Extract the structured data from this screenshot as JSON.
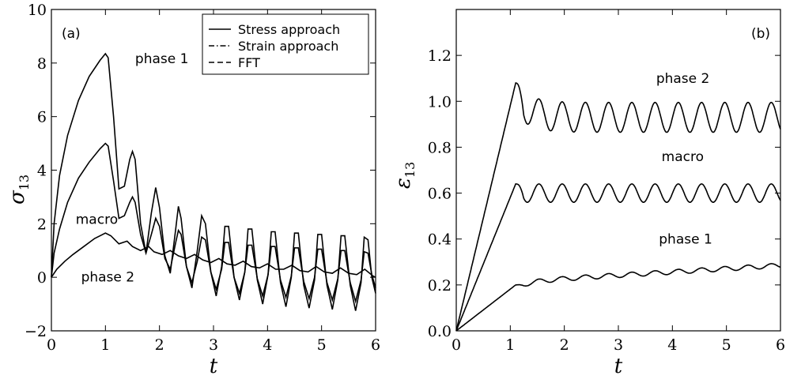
{
  "chart_data": [
    {
      "type": "line",
      "panel_label": "(a)",
      "xlabel": "t",
      "ylabel": {
        "base": "σ",
        "sub": "13"
      },
      "xlim": [
        0,
        6
      ],
      "ylim": [
        -2,
        10
      ],
      "xticks": [
        "0",
        "1",
        "2",
        "3",
        "4",
        "5",
        "6"
      ],
      "yticks": [
        "−2",
        "0",
        "2",
        "4",
        "6",
        "8",
        "10"
      ],
      "grid": false,
      "legend": {
        "placement": "top-right",
        "entries": [
          {
            "label": "Stress approach",
            "style": "solid"
          },
          {
            "label": "Strain approach",
            "style": "dashdot"
          },
          {
            "label": "FFT",
            "style": "dashed"
          }
        ]
      },
      "annotations": [
        {
          "text": "phase 1",
          "x": 1.55,
          "y": 8.0
        },
        {
          "text": "macro",
          "x": 0.45,
          "y": 2.0
        },
        {
          "text": "phase 2",
          "x": 0.55,
          "y": -0.15
        }
      ],
      "series": [
        {
          "name": "phase 1",
          "x": [
            0,
            0.05,
            0.15,
            0.3,
            0.5,
            0.7,
            0.9,
            1.0,
            1.05,
            1.15,
            1.25,
            1.35,
            1.45,
            1.5,
            1.55,
            1.65,
            1.75,
            1.85,
            1.93,
            2.0,
            2.1,
            2.2,
            2.3,
            2.35,
            2.4,
            2.5,
            2.6,
            2.7,
            2.78,
            2.85,
            2.95,
            3.05,
            3.15,
            3.21,
            3.28,
            3.38,
            3.48,
            3.58,
            3.64,
            3.71,
            3.81,
            3.91,
            4.01,
            4.07,
            4.14,
            4.24,
            4.34,
            4.44,
            4.5,
            4.57,
            4.67,
            4.77,
            4.87,
            4.93,
            5.0,
            5.1,
            5.2,
            5.3,
            5.36,
            5.43,
            5.53,
            5.63,
            5.73,
            5.79,
            5.86,
            5.93,
            6.0
          ],
          "y": [
            0,
            2.0,
            3.8,
            5.3,
            6.6,
            7.5,
            8.1,
            8.35,
            8.2,
            6.0,
            3.3,
            3.4,
            4.4,
            4.7,
            4.4,
            2.0,
            0.9,
            2.4,
            3.35,
            2.6,
            0.8,
            0.15,
            1.8,
            2.65,
            2.2,
            0.4,
            -0.4,
            1.0,
            2.3,
            2.0,
            0.2,
            -0.7,
            0.4,
            1.9,
            1.9,
            0.0,
            -0.85,
            0.2,
            1.8,
            1.8,
            -0.1,
            -1.0,
            0.1,
            1.7,
            1.7,
            -0.2,
            -1.1,
            0.0,
            1.65,
            1.65,
            -0.3,
            -1.15,
            -0.1,
            1.6,
            1.6,
            -0.3,
            -1.2,
            -0.1,
            1.55,
            1.55,
            -0.3,
            -1.25,
            -0.2,
            1.5,
            1.4,
            0.0,
            -0.6
          ]
        },
        {
          "name": "macro",
          "x": [
            0,
            0.05,
            0.15,
            0.3,
            0.5,
            0.7,
            0.9,
            1.0,
            1.05,
            1.15,
            1.25,
            1.35,
            1.45,
            1.5,
            1.55,
            1.65,
            1.75,
            1.85,
            1.93,
            2.0,
            2.1,
            2.2,
            2.3,
            2.35,
            2.4,
            2.5,
            2.6,
            2.7,
            2.78,
            2.85,
            2.95,
            3.05,
            3.15,
            3.21,
            3.28,
            3.38,
            3.48,
            3.58,
            3.64,
            3.71,
            3.81,
            3.91,
            4.01,
            4.07,
            4.14,
            4.24,
            4.34,
            4.44,
            4.5,
            4.57,
            4.67,
            4.77,
            4.87,
            4.93,
            5.0,
            5.1,
            5.2,
            5.3,
            5.36,
            5.43,
            5.53,
            5.63,
            5.73,
            5.79,
            5.86,
            5.93,
            6.0
          ],
          "y": [
            0,
            0.9,
            1.8,
            2.8,
            3.7,
            4.3,
            4.8,
            5.0,
            4.9,
            3.6,
            2.2,
            2.3,
            2.8,
            3.0,
            2.8,
            1.6,
            0.9,
            1.6,
            2.2,
            1.9,
            0.7,
            0.3,
            1.3,
            1.75,
            1.6,
            0.4,
            -0.2,
            0.6,
            1.5,
            1.4,
            0.2,
            -0.45,
            0.3,
            1.3,
            1.3,
            0.0,
            -0.6,
            0.2,
            1.2,
            1.2,
            -0.05,
            -0.7,
            0.1,
            1.15,
            1.15,
            -0.1,
            -0.75,
            0.05,
            1.1,
            1.1,
            -0.15,
            -0.8,
            0.0,
            1.05,
            1.05,
            -0.2,
            -0.85,
            -0.05,
            1.0,
            1.0,
            -0.2,
            -0.9,
            -0.1,
            0.95,
            0.9,
            0.1,
            -0.4
          ]
        },
        {
          "name": "phase 2",
          "x": [
            0,
            0.1,
            0.25,
            0.4,
            0.6,
            0.8,
            1.0,
            1.1,
            1.25,
            1.4,
            1.5,
            1.65,
            1.8,
            1.9,
            2.05,
            2.2,
            2.35,
            2.5,
            2.65,
            2.8,
            2.95,
            3.1,
            3.25,
            3.4,
            3.55,
            3.7,
            3.85,
            4.0,
            4.15,
            4.3,
            4.45,
            4.6,
            4.75,
            4.9,
            5.05,
            5.2,
            5.35,
            5.5,
            5.65,
            5.8,
            5.95,
            6.0
          ],
          "y": [
            0,
            0.3,
            0.6,
            0.85,
            1.15,
            1.45,
            1.65,
            1.55,
            1.25,
            1.35,
            1.15,
            1.0,
            1.15,
            0.95,
            0.85,
            1.0,
            0.8,
            0.7,
            0.85,
            0.65,
            0.55,
            0.7,
            0.5,
            0.45,
            0.6,
            0.4,
            0.35,
            0.5,
            0.3,
            0.3,
            0.45,
            0.25,
            0.2,
            0.4,
            0.2,
            0.15,
            0.35,
            0.15,
            0.1,
            0.3,
            0.05,
            0.0
          ]
        }
      ]
    },
    {
      "type": "line",
      "panel_label": "(b)",
      "xlabel": "t",
      "ylabel": {
        "base": "ε",
        "sub": "13"
      },
      "xlim": [
        0,
        6
      ],
      "ylim": [
        0,
        1.4
      ],
      "xticks": [
        "0",
        "1",
        "2",
        "3",
        "4",
        "5",
        "6"
      ],
      "yticks": [
        "0.0",
        "0.2",
        "0.4",
        "0.6",
        "0.8",
        "1.0",
        "1.2"
      ],
      "grid": false,
      "annotations": [
        {
          "text": "phase 2",
          "x": 3.7,
          "y": 1.08
        },
        {
          "text": "macro",
          "x": 3.8,
          "y": 0.74
        },
        {
          "text": "phase 1",
          "x": 3.75,
          "y": 0.38
        }
      ],
      "series": [
        {
          "name": "phase 2",
          "model": {
            "ramp_end": 1.1,
            "peak": 1.08,
            "mean": 0.93,
            "amp": 0.065,
            "period": 0.43,
            "phase": 0.0
          }
        },
        {
          "name": "macro",
          "model": {
            "ramp_end": 1.1,
            "peak": 0.64,
            "mean": 0.6,
            "amp": 0.04,
            "period": 0.43,
            "phase": 0.0
          }
        },
        {
          "name": "phase 1",
          "model": {
            "ramp_end": 1.1,
            "peak": 0.2,
            "mean_start": 0.215,
            "mean_end": 0.285,
            "amp": 0.01,
            "period": 0.43,
            "phase": 0.0
          }
        }
      ]
    }
  ]
}
